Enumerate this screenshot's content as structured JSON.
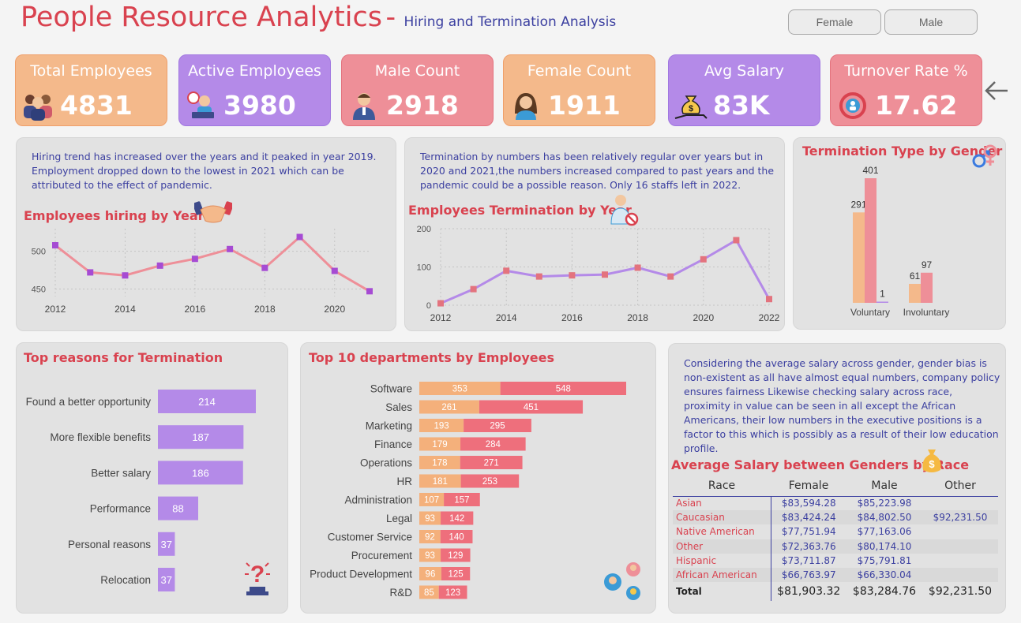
{
  "header": {
    "title": "People Resource Analytics",
    "dash": "-",
    "subtitle": "Hiring and Termination Analysis",
    "slicers": [
      "Female",
      "Male"
    ]
  },
  "kpis": [
    {
      "label": "Total Employees",
      "value": "4831",
      "icon": "people-group-icon"
    },
    {
      "label": "Active Employees",
      "value": "3980",
      "icon": "worker-at-laptop-icon"
    },
    {
      "label": "Male Count",
      "value": "2918",
      "icon": "male-avatar-icon"
    },
    {
      "label": "Female Count",
      "value": "1911",
      "icon": "female-avatar-icon"
    },
    {
      "label": "Avg Salary",
      "value": "83K",
      "icon": "money-bag-hand-icon"
    },
    {
      "label": "Turnover Rate %",
      "value": "17.62",
      "icon": "turnover-cycle-icon"
    }
  ],
  "notes": {
    "hiring": "Hiring trend has increased over the years and it peaked in year 2019. Employment dropped down to the lowest in 2021 which can be attributed to the effect of pandemic.",
    "termination": "Termination by numbers has been relatively regular over years but in 2020 and 2021,the numbers increased compared to past years and the pandemic could be a possible reason. Only 16 staffs left in 2022.",
    "salary": "Considering the average salary across gender, gender bias is non-existent as all have almost equal numbers, company policy ensures fairness Likewise checking salary across race, proximity in value can be seen in all except the African Americans, their low numbers in the executive positions is a factor to this which is possibly as a result of their low education profile."
  },
  "chart_data": [
    {
      "type": "line",
      "title": "Employees hiring by Year",
      "x": [
        2012,
        2013,
        2014,
        2015,
        2016,
        2017,
        2018,
        2019,
        2020,
        2021
      ],
      "series": [
        {
          "values": [
            508,
            472,
            468,
            481,
            490,
            503,
            478,
            519,
            474,
            447
          ]
        }
      ],
      "xticks": [
        "2012",
        "2014",
        "2016",
        "2018",
        "2020"
      ],
      "yticks": [
        "500",
        "450"
      ],
      "ylim": [
        440,
        530
      ],
      "color": "#ee8f98",
      "marker_color": "#a64bd3"
    },
    {
      "type": "line",
      "title": "Employees Termination by Year",
      "x": [
        2012,
        2013,
        2014,
        2015,
        2016,
        2017,
        2018,
        2019,
        2020,
        2021,
        2022
      ],
      "series": [
        {
          "values": [
            5,
            42,
            90,
            75,
            78,
            80,
            98,
            75,
            120,
            170,
            16
          ]
        }
      ],
      "xticks": [
        "2012",
        "2014",
        "2016",
        "2018",
        "2020",
        "2022"
      ],
      "yticks": [
        "200",
        "100",
        "0"
      ],
      "ylim": [
        0,
        200
      ],
      "color": "#b48ae8",
      "marker_color": "#e3737e"
    },
    {
      "type": "bar",
      "title": "Termination Type by Gender",
      "categories": [
        "Voluntary",
        "Involuntary"
      ],
      "series": [
        {
          "values": [
            291,
            61
          ],
          "color": "#f4b98b"
        },
        {
          "values": [
            401,
            97
          ],
          "color": "#ee8f98"
        },
        {
          "values": [
            1,
            0
          ],
          "color": "#b48ae8"
        }
      ],
      "labels": [
        [
          "291",
          "401",
          "1"
        ],
        [
          "61",
          "97",
          ""
        ]
      ],
      "ylim": [
        0,
        401
      ]
    },
    {
      "type": "bar",
      "orientation": "horizontal",
      "title": "Top reasons for Termination",
      "categories": [
        "Found a better opportunity",
        "More flexible benefits",
        "Better salary",
        "Performance",
        "Personal reasons",
        "Relocation"
      ],
      "values": [
        214,
        187,
        186,
        88,
        37,
        37
      ],
      "color": "#b48ae8"
    },
    {
      "type": "bar",
      "orientation": "horizontal",
      "stacked": true,
      "title": "Top 10 departments by Employees",
      "categories": [
        "Software",
        "Sales",
        "Marketing",
        "Finance",
        "Operations",
        "HR",
        "Administration",
        "Legal",
        "Customer Service",
        "Procurement",
        "Product Development",
        "R&D"
      ],
      "series": [
        {
          "values": [
            353,
            261,
            193,
            179,
            178,
            181,
            107,
            93,
            92,
            93,
            96,
            85
          ],
          "color": "#f4b07b"
        },
        {
          "values": [
            548,
            451,
            295,
            284,
            271,
            253,
            157,
            142,
            140,
            129,
            125,
            123
          ],
          "color": "#ee6f7c"
        }
      ]
    },
    {
      "type": "table",
      "title": "Average Salary between Genders by Race",
      "columns": [
        "Race",
        "Female",
        "Male",
        "Other"
      ],
      "rows": [
        [
          "Asian",
          "$83,594.28",
          "$85,223.98",
          ""
        ],
        [
          "Caucasian",
          "$83,424.24",
          "$84,802.50",
          "$92,231.50"
        ],
        [
          "Native American",
          "$77,751.94",
          "$77,163.06",
          ""
        ],
        [
          "Other",
          "$72,363.76",
          "$80,174.10",
          ""
        ],
        [
          "Hispanic",
          "$73,711.87",
          "$75,791.81",
          ""
        ],
        [
          "African American",
          "$66,763.97",
          "$66,330.04",
          ""
        ]
      ],
      "total": [
        "Total",
        "$81,903.32",
        "$83,284.76",
        "$92,231.50"
      ]
    }
  ]
}
